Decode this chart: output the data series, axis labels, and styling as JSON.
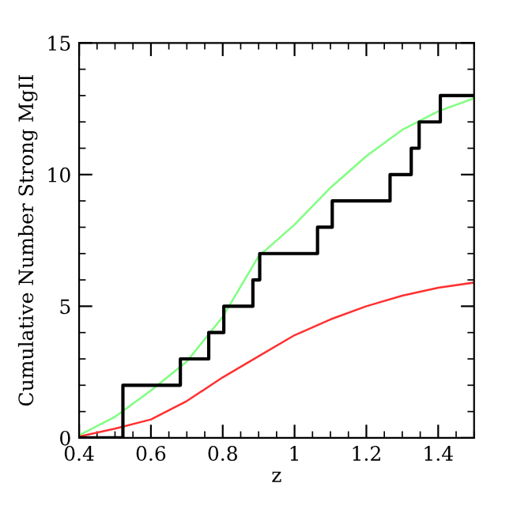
{
  "chart_data": {
    "type": "line",
    "xlabel": "z",
    "ylabel": "Cumulative Number Strong MgII",
    "xlim": [
      0.4,
      1.5
    ],
    "ylim": [
      0,
      15
    ],
    "xticks": [
      0.4,
      0.6,
      0.8,
      1,
      1.2,
      1.4
    ],
    "yticks": [
      0,
      5,
      10,
      15
    ],
    "grid": false,
    "legend": false,
    "series": [
      {
        "color": "#7fff7f",
        "x": [
          0.4,
          0.5,
          0.6,
          0.7,
          0.8,
          0.9,
          1.0,
          1.1,
          1.2,
          1.3,
          1.4,
          1.5
        ],
        "values": [
          0.1,
          0.8,
          1.8,
          2.9,
          4.6,
          6.9,
          8.1,
          9.5,
          10.7,
          11.7,
          12.4,
          12.9
        ]
      },
      {
        "color": "#ff3030",
        "x": [
          0.4,
          0.5,
          0.6,
          0.7,
          0.8,
          0.9,
          1.0,
          1.1,
          1.2,
          1.3,
          1.4,
          1.5
        ],
        "values": [
          0.05,
          0.35,
          0.7,
          1.4,
          2.3,
          3.1,
          3.9,
          4.5,
          5.0,
          5.4,
          5.7,
          5.9
        ]
      },
      {
        "type": "step",
        "color": "#000000",
        "x": [
          0.4,
          0.522,
          0.682,
          0.761,
          0.803,
          0.884,
          0.903,
          1.064,
          1.105,
          1.266,
          1.325,
          1.347,
          1.406,
          1.5
        ],
        "values": [
          0,
          2,
          3,
          4,
          5,
          6,
          7,
          8,
          9,
          10,
          11,
          12,
          13,
          13
        ]
      }
    ]
  }
}
